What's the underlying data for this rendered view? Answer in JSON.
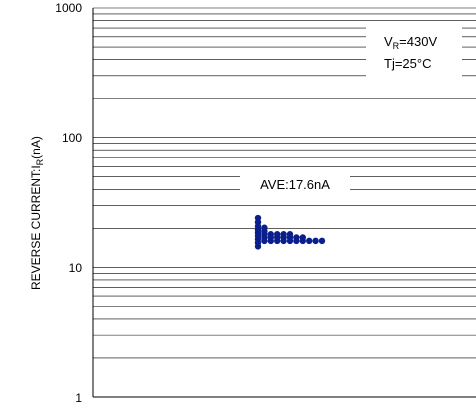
{
  "chart_data": {
    "type": "scatter",
    "y_scale": "log",
    "ylim": [
      1,
      1000
    ],
    "yticks": [
      "1",
      "10",
      "100",
      "1000"
    ],
    "ylabel": "REVERSE CURRENT:I",
    "ylabel_sub": "R",
    "ylabel_unit": "(nA)",
    "grid": true,
    "annotations": {
      "average": "AVE:17.6nA",
      "condition_v_main": "V",
      "condition_v_sub": "R",
      "condition_v_value": "=430V",
      "condition_tj": "Tj=25°C"
    },
    "marker_color": "#0a1f8c",
    "points": [
      {
        "col": 0,
        "y": 14.5
      },
      {
        "col": 0,
        "y": 15.5
      },
      {
        "col": 0,
        "y": 16.5
      },
      {
        "col": 0,
        "y": 17.5
      },
      {
        "col": 0,
        "y": 18.5
      },
      {
        "col": 0,
        "y": 19.5
      },
      {
        "col": 0,
        "y": 20.8
      },
      {
        "col": 0,
        "y": 22.3
      },
      {
        "col": 0,
        "y": 24.0
      },
      {
        "col": 1,
        "y": 16.0
      },
      {
        "col": 1,
        "y": 17.0
      },
      {
        "col": 1,
        "y": 18.0
      },
      {
        "col": 1,
        "y": 19.0
      },
      {
        "col": 1,
        "y": 20.2
      },
      {
        "col": 2,
        "y": 16.0
      },
      {
        "col": 2,
        "y": 17.0
      },
      {
        "col": 2,
        "y": 18.0
      },
      {
        "col": 3,
        "y": 16.0
      },
      {
        "col": 3,
        "y": 17.0
      },
      {
        "col": 3,
        "y": 18.0
      },
      {
        "col": 4,
        "y": 16.0
      },
      {
        "col": 4,
        "y": 17.0
      },
      {
        "col": 4,
        "y": 18.0
      },
      {
        "col": 5,
        "y": 16.0
      },
      {
        "col": 5,
        "y": 17.0
      },
      {
        "col": 5,
        "y": 18.0
      },
      {
        "col": 6,
        "y": 16.0
      },
      {
        "col": 6,
        "y": 17.0
      },
      {
        "col": 7,
        "y": 16.0
      },
      {
        "col": 7,
        "y": 17.0
      },
      {
        "col": 8,
        "y": 16.0
      },
      {
        "col": 9,
        "y": 16.0
      },
      {
        "col": 10,
        "y": 16.0
      }
    ]
  }
}
